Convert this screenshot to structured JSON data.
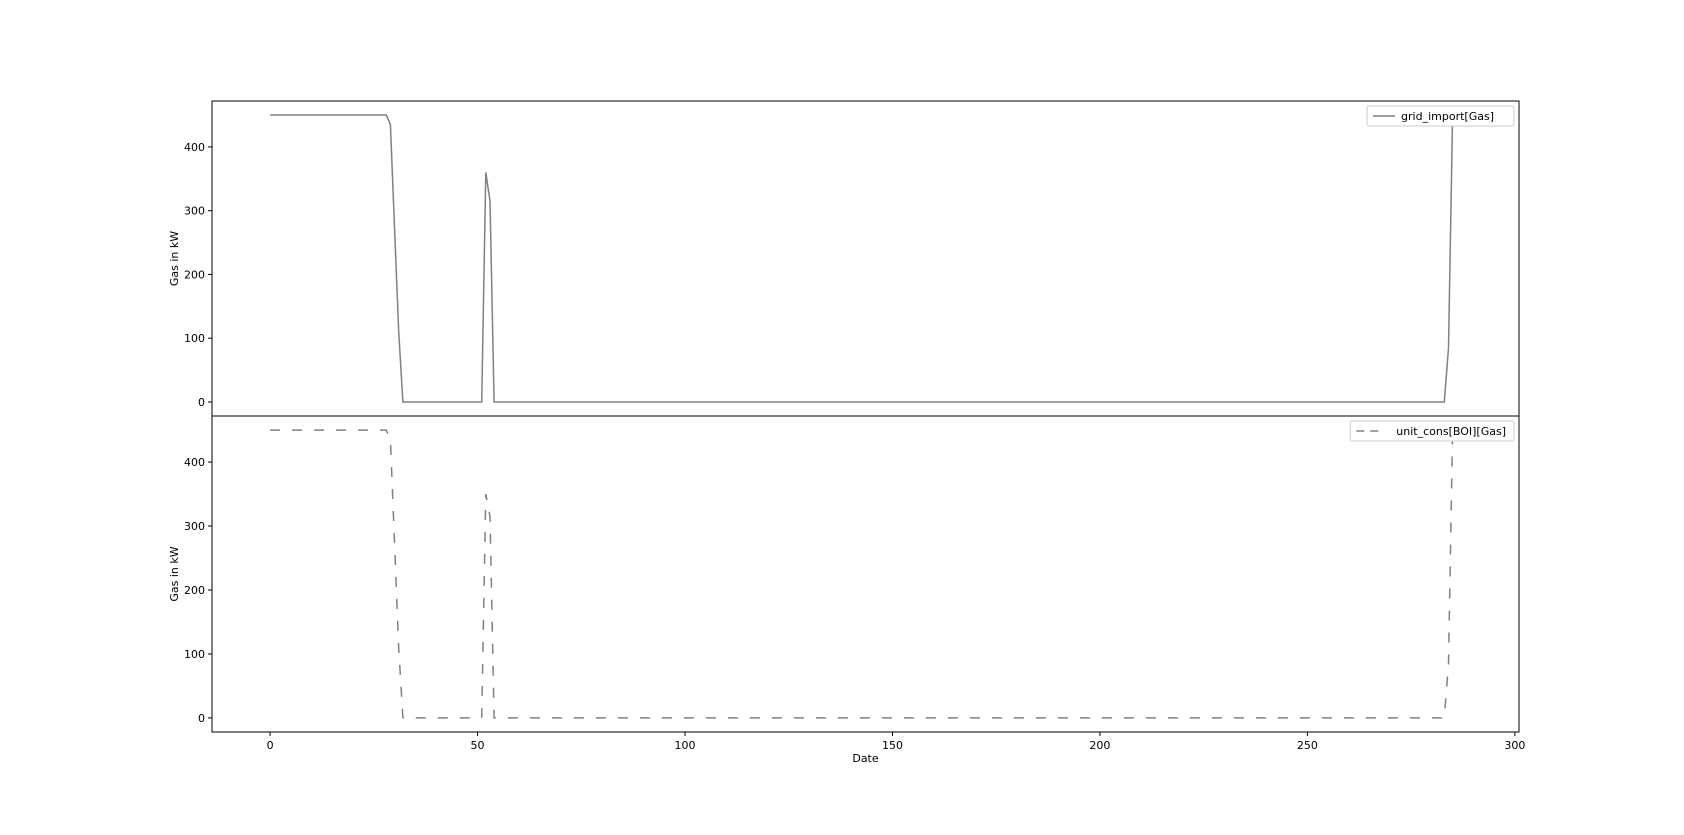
{
  "chart_data": {
    "type": "line",
    "xlabel": "Date",
    "xlim": [
      -14,
      301
    ],
    "x_ticks": [
      0,
      50,
      100,
      150,
      200,
      250,
      300
    ],
    "colors": {
      "line": "#808080",
      "axes": "#000000",
      "background": "#ffffff"
    },
    "grid": false,
    "subplots": [
      {
        "ylabel": "Gas in kW",
        "ylim": [
          -22,
          472
        ],
        "y_ticks": [
          0,
          100,
          200,
          300,
          400
        ],
        "legend_position": "top-right",
        "series": [
          {
            "name": "grid_import[Gas]",
            "linestyle": "solid",
            "points": [
              [
                0,
                450
              ],
              [
                28,
                450
              ],
              [
                29,
                435
              ],
              [
                31,
                110
              ],
              [
                32,
                0
              ],
              [
                51,
                0
              ],
              [
                52,
                360
              ],
              [
                53,
                315
              ],
              [
                54,
                0
              ],
              [
                283,
                0
              ],
              [
                284,
                85
              ],
              [
                285,
                450
              ]
            ]
          }
        ]
      },
      {
        "ylabel": "Gas in kW",
        "ylim": [
          -22,
          472
        ],
        "y_ticks": [
          0,
          100,
          200,
          300,
          400
        ],
        "legend_position": "top-right",
        "series": [
          {
            "name": "unit_cons[BOI][Gas]",
            "linestyle": "dashed",
            "points": [
              [
                0,
                450
              ],
              [
                28,
                450
              ],
              [
                29,
                435
              ],
              [
                31,
                110
              ],
              [
                32,
                0
              ],
              [
                51,
                0
              ],
              [
                52,
                350
              ],
              [
                53,
                315
              ],
              [
                54,
                0
              ],
              [
                283,
                0
              ],
              [
                284,
                85
              ],
              [
                285,
                450
              ]
            ]
          }
        ]
      }
    ]
  }
}
